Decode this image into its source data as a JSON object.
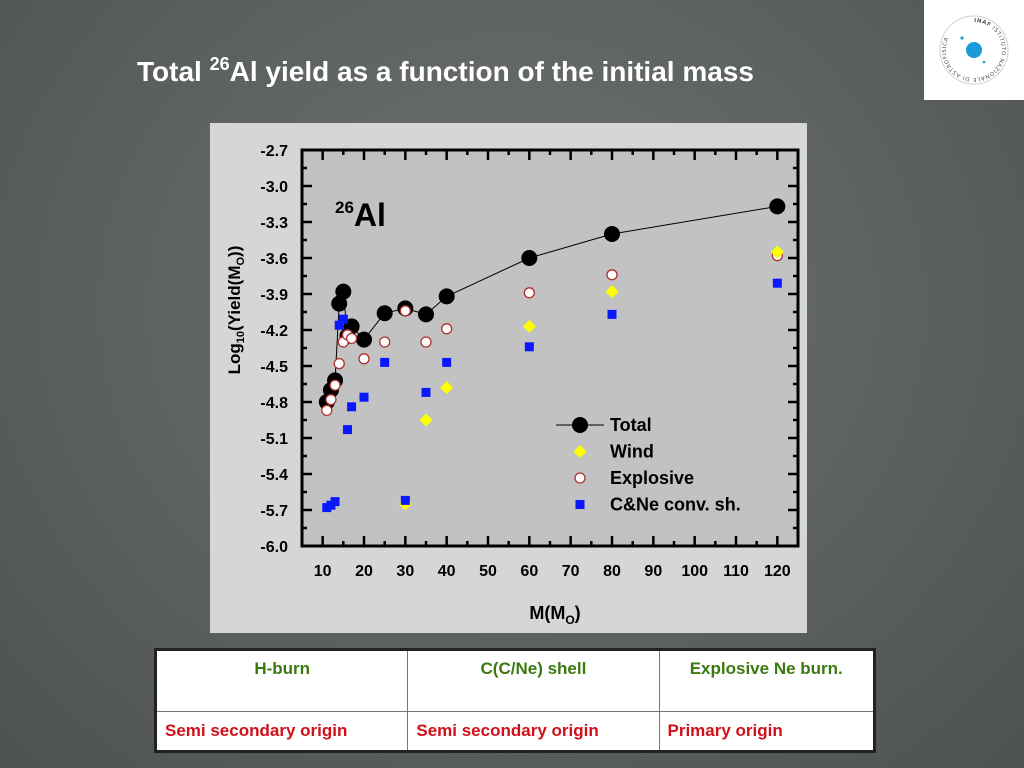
{
  "slide": {
    "title_prefix": "Total ",
    "title_sup": "26",
    "title_suffix": "Al yield as a function of the initial mass"
  },
  "logo": {
    "text_line1": "INAF",
    "text_line2": "ISTITUTO NAZIONALE DI ASTROFISICA",
    "accent_color": "#1a9ad6"
  },
  "chart_data": {
    "type": "scatter",
    "annotation_sup": "26",
    "annotation_text": "Al",
    "xlabel": "M(M",
    "xlabel_sub": "O",
    "xlabel_end": ")",
    "ylabel_prefix": "Log",
    "ylabel_sub": "10",
    "ylabel_rest": "(Yield(M",
    "ylabel_sub2": "O",
    "ylabel_end": "))",
    "xlim": [
      5,
      125
    ],
    "ylim": [
      -6.0,
      -2.7
    ],
    "xticks": [
      10,
      20,
      30,
      40,
      50,
      60,
      70,
      80,
      90,
      100,
      110,
      120
    ],
    "xtick_labels": [
      "10",
      "20",
      "30",
      "40",
      "50",
      "60",
      "70",
      "80",
      "90",
      "100",
      "110",
      "120"
    ],
    "yticks": [
      -2.7,
      -3.0,
      -3.3,
      -3.6,
      -3.9,
      -4.2,
      -4.5,
      -4.8,
      -5.1,
      -5.4,
      -5.7,
      -6.0
    ],
    "ytick_labels": [
      "-2.7",
      "-3.0",
      "-3.3",
      "-3.6",
      "-3.9",
      "-4.2",
      "-4.5",
      "-4.8",
      "-5.1",
      "-5.4",
      "-5.7",
      "-6.0"
    ],
    "grid": false,
    "legend_position": "bottom-right",
    "series": [
      {
        "name": "Total",
        "marker": "circle-filled",
        "color": "#000000",
        "line": true,
        "points": [
          [
            11,
            -4.8
          ],
          [
            12,
            -4.7
          ],
          [
            13,
            -4.62
          ],
          [
            14,
            -3.98
          ],
          [
            15,
            -3.88
          ],
          [
            16,
            -4.25
          ],
          [
            17,
            -4.17
          ],
          [
            20,
            -4.28
          ],
          [
            25,
            -4.06
          ],
          [
            30,
            -4.02
          ],
          [
            35,
            -4.07
          ],
          [
            40,
            -3.92
          ],
          [
            60,
            -3.6
          ],
          [
            80,
            -3.4
          ],
          [
            120,
            -3.17
          ]
        ]
      },
      {
        "name": "Wind",
        "marker": "diamond",
        "color": "#ffff00",
        "line": false,
        "points": [
          [
            30,
            -5.65
          ],
          [
            35,
            -4.95
          ],
          [
            40,
            -4.68
          ],
          [
            60,
            -4.17
          ],
          [
            80,
            -3.88
          ],
          [
            120,
            -3.55
          ]
        ]
      },
      {
        "name": "Explosive",
        "marker": "circle-open",
        "color": "#b03030",
        "line": false,
        "points": [
          [
            11,
            -4.87
          ],
          [
            12,
            -4.78
          ],
          [
            13,
            -4.66
          ],
          [
            14,
            -4.48
          ],
          [
            15,
            -4.3
          ],
          [
            16,
            -4.24
          ],
          [
            17,
            -4.27
          ],
          [
            20,
            -4.44
          ],
          [
            25,
            -4.3
          ],
          [
            30,
            -4.04
          ],
          [
            35,
            -4.3
          ],
          [
            40,
            -4.19
          ],
          [
            60,
            -3.89
          ],
          [
            80,
            -3.74
          ],
          [
            120,
            -3.58
          ]
        ]
      },
      {
        "name": "C&Ne conv. sh.",
        "marker": "square",
        "color": "#0a18ff",
        "line": false,
        "points": [
          [
            11,
            -5.68
          ],
          [
            12,
            -5.66
          ],
          [
            13,
            -5.63
          ],
          [
            14,
            -4.16
          ],
          [
            15,
            -4.11
          ],
          [
            16,
            -5.03
          ],
          [
            17,
            -4.84
          ],
          [
            20,
            -4.76
          ],
          [
            25,
            -4.47
          ],
          [
            30,
            -5.62
          ],
          [
            35,
            -4.72
          ],
          [
            40,
            -4.47
          ],
          [
            60,
            -4.34
          ],
          [
            80,
            -4.07
          ],
          [
            120,
            -3.81
          ]
        ]
      }
    ]
  },
  "table": {
    "headers": [
      "H-burn",
      "C(C/Ne) shell",
      "Explosive Ne burn."
    ],
    "origins": [
      "Semi secondary origin",
      "Semi secondary origin",
      "Primary origin"
    ],
    "header_color": "#3a7a10",
    "origin_color": "#d0101a"
  }
}
